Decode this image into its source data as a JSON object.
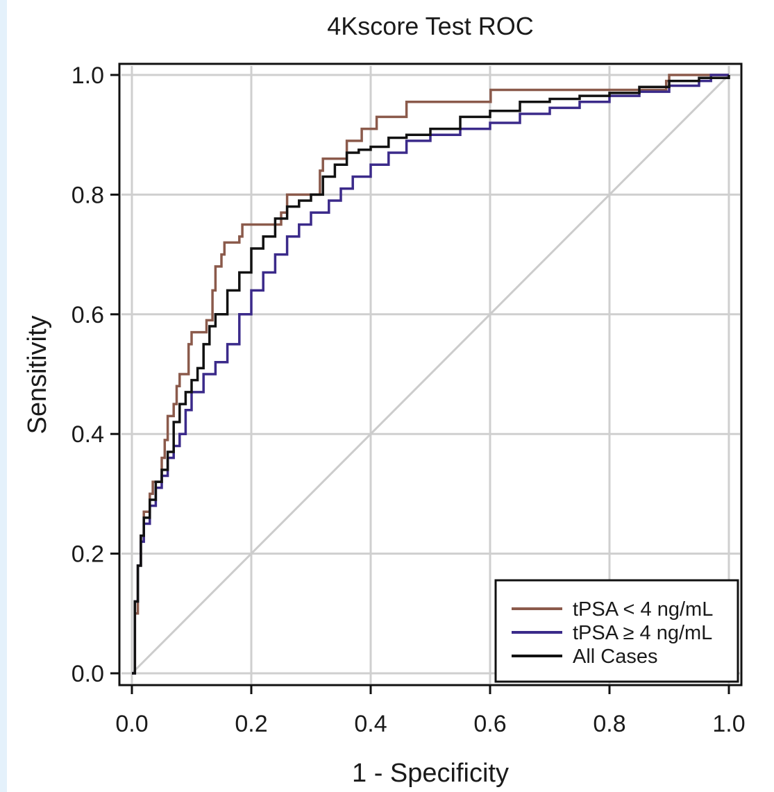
{
  "chart_data": {
    "type": "line",
    "title": "4Kscore Test ROC",
    "xlabel": "1 - Specificity",
    "ylabel": "Sensitivity",
    "xlim": [
      0,
      1
    ],
    "ylim": [
      0,
      1
    ],
    "xticks": [
      "0.0",
      "0.2",
      "0.4",
      "0.6",
      "0.8",
      "1.0"
    ],
    "yticks": [
      "0.0",
      "0.2",
      "0.4",
      "0.6",
      "0.8",
      "1.0"
    ],
    "grid": true,
    "legend_position": "bottom-right",
    "reference_line": {
      "x": [
        0,
        1
      ],
      "y": [
        0,
        1
      ],
      "color": "#cccccc"
    },
    "series": [
      {
        "name": "tPSA < 4 ng/mL",
        "color": "#8b5a4b",
        "step": true,
        "points": [
          [
            0,
            0
          ],
          [
            0.005,
            0.1
          ],
          [
            0.01,
            0.18
          ],
          [
            0.015,
            0.23
          ],
          [
            0.02,
            0.27
          ],
          [
            0.03,
            0.3
          ],
          [
            0.035,
            0.32
          ],
          [
            0.04,
            0.32
          ],
          [
            0.05,
            0.36
          ],
          [
            0.055,
            0.39
          ],
          [
            0.06,
            0.43
          ],
          [
            0.07,
            0.45
          ],
          [
            0.075,
            0.48
          ],
          [
            0.08,
            0.5
          ],
          [
            0.09,
            0.5
          ],
          [
            0.095,
            0.55
          ],
          [
            0.1,
            0.57
          ],
          [
            0.12,
            0.57
          ],
          [
            0.125,
            0.59
          ],
          [
            0.13,
            0.59
          ],
          [
            0.135,
            0.64
          ],
          [
            0.14,
            0.68
          ],
          [
            0.145,
            0.68
          ],
          [
            0.15,
            0.7
          ],
          [
            0.155,
            0.72
          ],
          [
            0.18,
            0.73
          ],
          [
            0.185,
            0.75
          ],
          [
            0.24,
            0.75
          ],
          [
            0.25,
            0.77
          ],
          [
            0.26,
            0.8
          ],
          [
            0.31,
            0.8
          ],
          [
            0.315,
            0.84
          ],
          [
            0.32,
            0.86
          ],
          [
            0.35,
            0.86
          ],
          [
            0.36,
            0.89
          ],
          [
            0.38,
            0.89
          ],
          [
            0.385,
            0.91
          ],
          [
            0.4,
            0.91
          ],
          [
            0.41,
            0.93
          ],
          [
            0.45,
            0.93
          ],
          [
            0.46,
            0.955
          ],
          [
            0.6,
            0.955
          ],
          [
            0.601,
            0.975
          ],
          [
            0.89,
            0.975
          ],
          [
            0.895,
            0.99
          ],
          [
            0.9,
            1.0
          ],
          [
            1.0,
            1.0
          ]
        ]
      },
      {
        "name": "tPSA ≥ 4 ng/mL",
        "color": "#3b2a8a",
        "step": true,
        "points": [
          [
            0,
            0
          ],
          [
            0.005,
            0.12
          ],
          [
            0.01,
            0.18
          ],
          [
            0.015,
            0.22
          ],
          [
            0.02,
            0.25
          ],
          [
            0.03,
            0.28
          ],
          [
            0.04,
            0.31
          ],
          [
            0.05,
            0.33
          ],
          [
            0.06,
            0.36
          ],
          [
            0.07,
            0.38
          ],
          [
            0.08,
            0.4
          ],
          [
            0.09,
            0.44
          ],
          [
            0.1,
            0.47
          ],
          [
            0.12,
            0.5
          ],
          [
            0.14,
            0.52
          ],
          [
            0.16,
            0.55
          ],
          [
            0.18,
            0.6
          ],
          [
            0.2,
            0.64
          ],
          [
            0.22,
            0.67
          ],
          [
            0.24,
            0.7
          ],
          [
            0.26,
            0.73
          ],
          [
            0.28,
            0.75
          ],
          [
            0.3,
            0.77
          ],
          [
            0.33,
            0.79
          ],
          [
            0.35,
            0.81
          ],
          [
            0.37,
            0.83
          ],
          [
            0.4,
            0.85
          ],
          [
            0.43,
            0.87
          ],
          [
            0.46,
            0.89
          ],
          [
            0.5,
            0.9
          ],
          [
            0.55,
            0.91
          ],
          [
            0.6,
            0.92
          ],
          [
            0.65,
            0.935
          ],
          [
            0.7,
            0.945
          ],
          [
            0.75,
            0.955
          ],
          [
            0.8,
            0.965
          ],
          [
            0.85,
            0.972
          ],
          [
            0.9,
            0.982
          ],
          [
            0.95,
            0.99
          ],
          [
            0.97,
            1.0
          ],
          [
            1.0,
            1.0
          ]
        ]
      },
      {
        "name": "All Cases",
        "color": "#111111",
        "step": true,
        "points": [
          [
            0,
            0
          ],
          [
            0.005,
            0.12
          ],
          [
            0.01,
            0.18
          ],
          [
            0.015,
            0.23
          ],
          [
            0.02,
            0.26
          ],
          [
            0.03,
            0.29
          ],
          [
            0.04,
            0.32
          ],
          [
            0.05,
            0.34
          ],
          [
            0.06,
            0.37
          ],
          [
            0.07,
            0.42
          ],
          [
            0.08,
            0.45
          ],
          [
            0.09,
            0.47
          ],
          [
            0.1,
            0.49
          ],
          [
            0.11,
            0.51
          ],
          [
            0.12,
            0.55
          ],
          [
            0.13,
            0.58
          ],
          [
            0.14,
            0.6
          ],
          [
            0.16,
            0.64
          ],
          [
            0.18,
            0.67
          ],
          [
            0.2,
            0.71
          ],
          [
            0.22,
            0.73
          ],
          [
            0.24,
            0.76
          ],
          [
            0.26,
            0.78
          ],
          [
            0.28,
            0.79
          ],
          [
            0.3,
            0.8
          ],
          [
            0.32,
            0.83
          ],
          [
            0.34,
            0.85
          ],
          [
            0.36,
            0.87
          ],
          [
            0.38,
            0.875
          ],
          [
            0.4,
            0.88
          ],
          [
            0.43,
            0.895
          ],
          [
            0.46,
            0.9
          ],
          [
            0.5,
            0.91
          ],
          [
            0.55,
            0.93
          ],
          [
            0.6,
            0.94
          ],
          [
            0.65,
            0.955
          ],
          [
            0.7,
            0.96
          ],
          [
            0.75,
            0.965
          ],
          [
            0.8,
            0.97
          ],
          [
            0.85,
            0.98
          ],
          [
            0.9,
            0.99
          ],
          [
            0.95,
            0.995
          ],
          [
            1.0,
            1.0
          ]
        ]
      }
    ]
  }
}
